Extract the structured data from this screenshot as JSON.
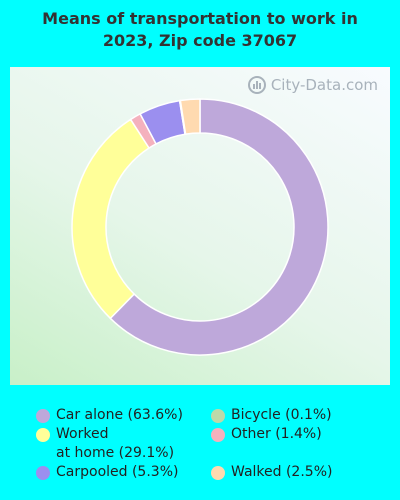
{
  "title": "Means of transportation to work in\n2023, Zip code 37067",
  "watermark": "City-Data.com",
  "chart_data": {
    "type": "pie",
    "subtype": "donut",
    "series": [
      {
        "name": "Car alone",
        "value": 63.6,
        "color": "#BEA8DA",
        "label": "Car alone (63.6%)"
      },
      {
        "name": "Worked at home",
        "value": 29.1,
        "color": "#FFFF99",
        "label": "Worked\nat home (29.1%)"
      },
      {
        "name": "Carpooled",
        "value": 5.3,
        "color": "#9B8FEF",
        "label": "Carpooled (5.3%)"
      },
      {
        "name": "Bicycle",
        "value": 0.1,
        "color": "#BCD9A9",
        "label": "Bicycle (0.1%)"
      },
      {
        "name": "Other",
        "value": 1.4,
        "color": "#F4B1BD",
        "label": "Other (1.4%)"
      },
      {
        "name": "Walked",
        "value": 2.5,
        "color": "#FFDAB0",
        "label": "Walked (2.5%)"
      }
    ],
    "draw_order": [
      "Car alone",
      "Worked at home",
      "Other",
      "Carpooled",
      "Bicycle",
      "Walked"
    ]
  }
}
